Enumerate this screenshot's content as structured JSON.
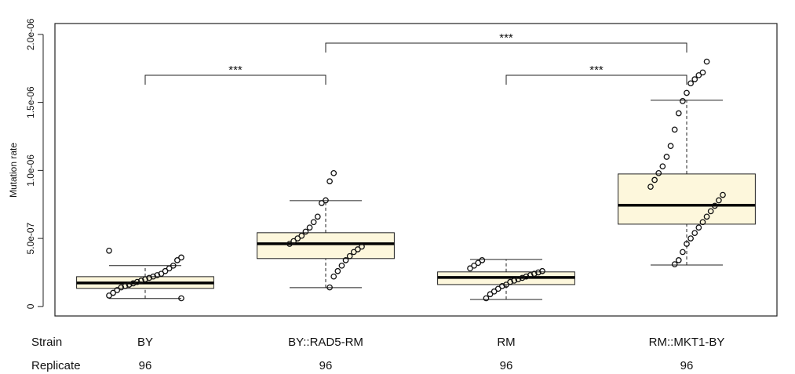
{
  "chart_data": {
    "type": "box",
    "y_label": "Mutation rate",
    "categories": [
      "BY",
      "BY::RAD5-RM",
      "RM",
      "RM::MKT1-BY"
    ],
    "boxes": [
      {
        "min": 5.8e-08,
        "q1": 1.33e-07,
        "median": 1.73e-07,
        "q3": 2.19e-07,
        "max": 3e-07
      },
      {
        "min": 1.38e-07,
        "q1": 3.52e-07,
        "median": 4.61e-07,
        "q3": 5.42e-07,
        "max": 7.78e-07
      },
      {
        "min": 5.2e-08,
        "q1": 1.61e-07,
        "median": 2.13e-07,
        "q3": 2.54e-07,
        "max": 3.46e-07
      },
      {
        "min": 3.05e-07,
        "q1": 6.05e-07,
        "median": 7.44e-07,
        "q3": 9.74e-07,
        "max": 1.516e-06
      }
    ],
    "points": [
      [
        4.1e-07,
        3.6e-07,
        3.4e-07,
        3e-07,
        2.8e-07,
        2.6e-07,
        2.4e-07,
        2.3e-07,
        2.2e-07,
        2.1e-07,
        2e-07,
        1.9e-07,
        1.8e-07,
        1.7e-07,
        1.6e-07,
        1.5e-07,
        1.4e-07,
        1.2e-07,
        1e-07,
        8e-08,
        6e-08
      ],
      [
        9.8e-07,
        9.2e-07,
        7.8e-07,
        7.6e-07,
        6.6e-07,
        6.2e-07,
        5.8e-07,
        5.5e-07,
        5.2e-07,
        5e-07,
        4.8e-07,
        4.6e-07,
        4.4e-07,
        4.2e-07,
        4e-07,
        3.7e-07,
        3.4e-07,
        3e-07,
        2.6e-07,
        2.2e-07,
        1.4e-07
      ],
      [
        3.4e-07,
        3.2e-07,
        3e-07,
        2.8e-07,
        2.6e-07,
        2.5e-07,
        2.4e-07,
        2.3e-07,
        2.2e-07,
        2.1e-07,
        2e-07,
        1.9e-07,
        1.8e-07,
        1.6e-07,
        1.5e-07,
        1.3e-07,
        1.1e-07,
        9e-08,
        6e-08
      ],
      [
        1.8e-06,
        1.72e-06,
        1.7e-06,
        1.67e-06,
        1.64e-06,
        1.57e-06,
        1.51e-06,
        1.42e-06,
        1.3e-06,
        1.18e-06,
        1.1e-06,
        1.03e-06,
        9.8e-07,
        9.3e-07,
        8.8e-07,
        8.2e-07,
        7.8e-07,
        7.4e-07,
        7e-07,
        6.6e-07,
        6.2e-07,
        5.8e-07,
        5.4e-07,
        5e-07,
        4.6e-07,
        4e-07,
        3.4e-07,
        3.1e-07
      ]
    ],
    "box_color": "#fdf7dc",
    "ylim": [
      -7e-08,
      2.08e-06
    ],
    "yticks": [
      0,
      {
        "value": 5e-07,
        "label": "5.0e-07"
      },
      {
        "value": 1e-06,
        "label": "1.0e-06"
      },
      {
        "value": 1.5e-06,
        "label": "1.5e-06"
      },
      {
        "value": 2e-06,
        "label": "2.0e-06"
      }
    ],
    "annotations": [
      "***",
      "***",
      "***"
    ],
    "row_labels": [
      "Strain",
      "Replicate"
    ],
    "replicates": [
      96,
      96,
      96,
      96
    ]
  }
}
